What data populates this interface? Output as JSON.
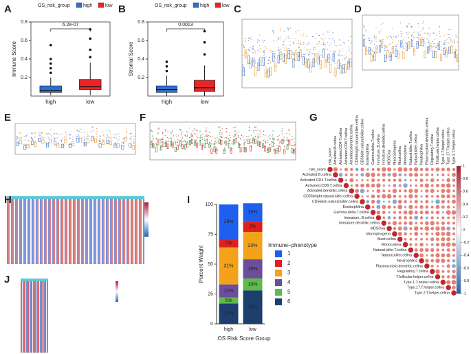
{
  "panels": [
    "A",
    "B",
    "C",
    "D",
    "E",
    "F",
    "G",
    "H",
    "I",
    "J"
  ],
  "chart_data": [
    {
      "type": "box",
      "legend_title": "OS_risk_group",
      "categories": [
        "high",
        "low"
      ],
      "colors": [
        "#2f6fd0",
        "#e8262a"
      ],
      "ylabel": "Immune Score",
      "annotation": "6.2e-07",
      "ylim": [
        0,
        0.8
      ],
      "yticks": [
        0.2,
        0.4,
        0.6,
        0.8
      ],
      "boxes": [
        {
          "min": 0.01,
          "q1": 0.04,
          "median": 0.06,
          "q3": 0.11,
          "max": 0.2,
          "outliers": [
            0.25,
            0.3,
            0.35,
            0.4,
            0.55
          ]
        },
        {
          "min": 0.01,
          "q1": 0.07,
          "median": 0.1,
          "q3": 0.18,
          "max": 0.36,
          "outliers": [
            0.42,
            0.5,
            0.62,
            0.72
          ]
        }
      ]
    },
    {
      "type": "box",
      "legend_title": "OS_risk_group",
      "categories": [
        "high",
        "low"
      ],
      "colors": [
        "#2f6fd0",
        "#e8262a"
      ],
      "ylabel": "Stromal Score",
      "annotation": "0.0013",
      "ylim": [
        0,
        0.8
      ],
      "yticks": [
        0.2,
        0.4,
        0.6,
        0.8
      ],
      "boxes": [
        {
          "min": 0,
          "q1": 0.04,
          "median": 0.07,
          "q3": 0.11,
          "max": 0.22,
          "outliers": [
            0.27,
            0.32,
            0.37
          ]
        },
        {
          "min": 0,
          "q1": 0.05,
          "median": 0.09,
          "q3": 0.17,
          "max": 0.33,
          "outliers": [
            0.45,
            0.58,
            0.7
          ]
        }
      ]
    },
    {
      "type": "stacked_bar",
      "categories": [
        "high",
        "low"
      ],
      "ylabel": "Percent Weight",
      "xlabel": "OS Risk Score Group",
      "legend_title": "Immune−phenotype",
      "ylim": [
        0,
        100
      ],
      "yticks": [
        0,
        25,
        50,
        75,
        100
      ],
      "series": [
        {
          "name": "1",
          "color": "#1f5ff0",
          "values": [
            29,
            15
          ],
          "value_labels": [
            "29%",
            "15%"
          ]
        },
        {
          "name": "2",
          "color": "#e02020",
          "values": [
            7,
            9
          ],
          "value_labels": [
            "7%",
            "9%"
          ]
        },
        {
          "name": "3",
          "color": "#f5a21b",
          "values": [
            31,
            23
          ],
          "value_labels": [
            "31%",
            "23%"
          ]
        },
        {
          "name": "4",
          "color": "#6b4f9a",
          "values": [
            11,
            16
          ],
          "value_labels": [
            "11%",
            "16%"
          ]
        },
        {
          "name": "5",
          "color": "#5dbb4a",
          "values": [
            5,
            10
          ],
          "value_labels": [
            "5%",
            "10%"
          ]
        },
        {
          "name": "6",
          "color": "#1d3f6e",
          "values": [
            17,
            28
          ],
          "value_labels": [
            "17%",
            "28%"
          ]
        }
      ]
    }
  ],
  "corrplot": {
    "labels": [
      "risk_score",
      "Activated.B.cellna",
      "Activated.CD4.T.cellna",
      "Activated.CD8.T.cellna",
      "Activated.dendritic.cellna",
      "CD56bright.natural.killer.cellna",
      "CD56dim.natural.killer.cellna",
      "Eosinophilna",
      "Gamma.delta.T.cellna",
      "Immature..B.cellna",
      "Immature.dendritic.cellna",
      "MDSCna",
      "Macrophagena",
      "Mast.cellna",
      "Monocytena",
      "Natural.killer.T.cellna",
      "Natural.killer.cellna",
      "Neutrophilna",
      "Plasmacytoid.dendritic.cellna",
      "Regulatory.T.cellna",
      "T.follicular.helper.cellna",
      "Type.1.T.helper.cellna",
      "Type.17.T.helper.cellna",
      "Type.2.T.helper.cellna"
    ],
    "colorbar_ticks": [
      1,
      0.8,
      0.6,
      0.4,
      0.2,
      0,
      -0.2,
      -0.4,
      -0.6,
      -0.8,
      -1
    ]
  }
}
